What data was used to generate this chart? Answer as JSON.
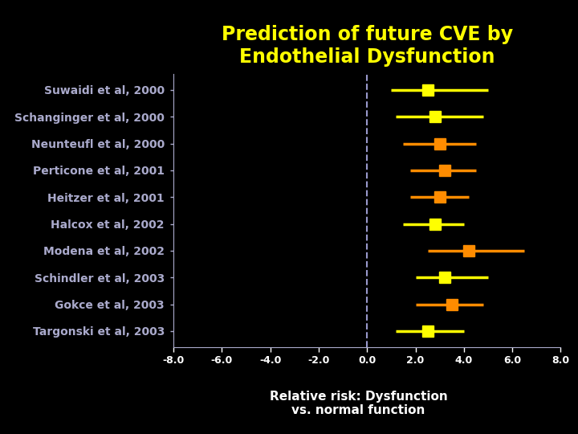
{
  "title": "Prediction of future CVE by\nEndothelial Dysfunction",
  "title_color": "#FFFF00",
  "background_color": "#000000",
  "xlabel_line1": "Relative risk: Dysfunction",
  "xlabel_line2": "vs. normal function",
  "xlabel_color": "#FFFFFF",
  "studies": [
    "Suwaidi et al, 2000",
    "Schanginger et al, 2000",
    "Neunteufl et al, 2000",
    "Perticone et al, 2001",
    "Heitzer et al, 2001",
    "Halcox et al, 2002",
    "Modena et al, 2002",
    "Schindler et al, 2003",
    "Gokce et al, 2003",
    "Targonski et al, 2003"
  ],
  "point_estimates": [
    2.5,
    2.8,
    3.0,
    3.2,
    3.0,
    2.8,
    4.2,
    3.2,
    3.5,
    2.5
  ],
  "ci_lower": [
    1.0,
    1.2,
    1.5,
    1.8,
    1.8,
    1.5,
    2.5,
    2.0,
    2.0,
    1.2
  ],
  "ci_upper": [
    5.0,
    4.8,
    4.5,
    4.5,
    4.2,
    4.0,
    6.5,
    5.0,
    4.8,
    4.0
  ],
  "marker_colors": [
    "#FFFF00",
    "#FFFF00",
    "#FF8C00",
    "#FF8C00",
    "#FF8C00",
    "#FFFF00",
    "#FF8C00",
    "#FFFF00",
    "#FF8C00",
    "#FFFF00"
  ],
  "line_colors": [
    "#FFFF00",
    "#FFFF00",
    "#FF8C00",
    "#FF8C00",
    "#FF8C00",
    "#FFFF00",
    "#FF8C00",
    "#FFFF00",
    "#FF8C00",
    "#FFFF00"
  ],
  "spine_color": "#AAAACC",
  "tick_color": "#FFFFFF",
  "xlim": [
    -8.0,
    8.0
  ],
  "xticks": [
    -8.0,
    -6.0,
    -4.0,
    -2.0,
    0.0,
    2.0,
    4.0,
    6.0,
    8.0
  ],
  "xtick_labels": [
    "-8.0",
    "-6.0",
    "-4.0",
    "-2.0",
    "0.0",
    "2.0",
    "4.0",
    "6.0",
    "8.0"
  ],
  "ref_line_x": 0.0,
  "ref_line_color": "#9999CC",
  "ref_line_style": "--",
  "title_fontsize": 17,
  "label_fontsize": 11,
  "tick_fontsize": 9,
  "study_fontsize": 10
}
